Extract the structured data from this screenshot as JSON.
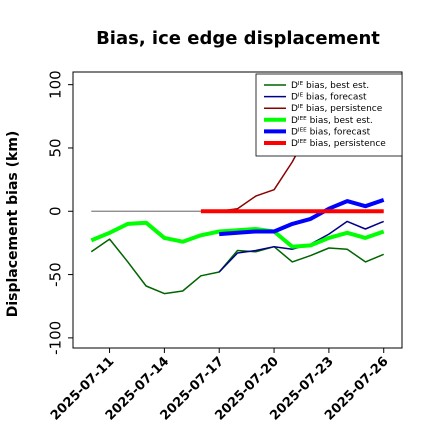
{
  "chart_data": {
    "type": "line",
    "title": "Bias, ice edge displacement",
    "xlabel": "",
    "ylabel": "Displacement bias (km)",
    "ylim": [
      -108,
      110
    ],
    "xlim": [
      "2025-07-09",
      "2025-07-27"
    ],
    "y_ticks": [
      100,
      50,
      0,
      -50,
      -100
    ],
    "y_tick_labels": [
      "100",
      "50",
      "0",
      "-50",
      "-100"
    ],
    "x_ticks": [
      "2025-07-11",
      "2025-07-14",
      "2025-07-17",
      "2025-07-20",
      "2025-07-23",
      "2025-07-26"
    ],
    "x_tick_labels": [
      "2025-07-11",
      "2025-07-14",
      "2025-07-17",
      "2025-07-20",
      "2025-07-23",
      "2025-07-26"
    ],
    "x_tick_colors": [
      "#000000",
      "#000000",
      "#228b22",
      "#000000",
      "#000000",
      "#000000"
    ],
    "grid": false,
    "legend_position": "top-right",
    "zero_line": {
      "from": "2025-07-10",
      "to": "2025-07-26",
      "y": 0,
      "color": "#808080"
    },
    "series": [
      {
        "name": "Dᴵᴱ bias, best est.",
        "color": "#006400",
        "width": 1.5,
        "points": [
          [
            "2025-07-10",
            -32
          ],
          [
            "2025-07-11",
            -22
          ],
          [
            "2025-07-12",
            -40
          ],
          [
            "2025-07-13",
            -59
          ],
          [
            "2025-07-14",
            -65
          ],
          [
            "2025-07-15",
            -63
          ],
          [
            "2025-07-16",
            -51
          ],
          [
            "2025-07-17",
            -48
          ],
          [
            "2025-07-18",
            -31
          ],
          [
            "2025-07-19",
            -32
          ],
          [
            "2025-07-20",
            -28
          ],
          [
            "2025-07-21",
            -40
          ],
          [
            "2025-07-22",
            -35
          ],
          [
            "2025-07-23",
            -29
          ],
          [
            "2025-07-24",
            -30
          ],
          [
            "2025-07-25",
            -40
          ],
          [
            "2025-07-26",
            -34
          ]
        ]
      },
      {
        "name": "Dᴵᴱ bias, forecast",
        "color": "#00008b",
        "width": 1.5,
        "points": [
          [
            "2025-07-17",
            -48
          ],
          [
            "2025-07-18",
            -33
          ],
          [
            "2025-07-19",
            -31
          ],
          [
            "2025-07-20",
            -28
          ],
          [
            "2025-07-21",
            -30
          ],
          [
            "2025-07-22",
            -26
          ],
          [
            "2025-07-23",
            -18
          ],
          [
            "2025-07-24",
            -8
          ],
          [
            "2025-07-25",
            -14
          ],
          [
            "2025-07-26",
            -8
          ]
        ]
      },
      {
        "name": "Dᴵᴱ bias, persistence",
        "color": "#8b0000",
        "width": 1.5,
        "points": [
          [
            "2025-07-17",
            0
          ],
          [
            "2025-07-18",
            2
          ],
          [
            "2025-07-19",
            12
          ],
          [
            "2025-07-20",
            17
          ],
          [
            "2025-07-21",
            39
          ],
          [
            "2025-07-22",
            66
          ]
        ]
      },
      {
        "name": "Dᴵᴱᴱ bias, best est.",
        "color": "#00ff00",
        "width": 4,
        "points": [
          [
            "2025-07-10",
            -23
          ],
          [
            "2025-07-11",
            -17
          ],
          [
            "2025-07-12",
            -10
          ],
          [
            "2025-07-13",
            -9
          ],
          [
            "2025-07-14",
            -21
          ],
          [
            "2025-07-15",
            -24
          ],
          [
            "2025-07-16",
            -19
          ],
          [
            "2025-07-17",
            -16
          ],
          [
            "2025-07-18",
            -15
          ],
          [
            "2025-07-19",
            -14
          ],
          [
            "2025-07-20",
            -16
          ],
          [
            "2025-07-21",
            -28
          ],
          [
            "2025-07-22",
            -27
          ],
          [
            "2025-07-23",
            -21
          ],
          [
            "2025-07-24",
            -17
          ],
          [
            "2025-07-25",
            -21
          ],
          [
            "2025-07-26",
            -16
          ]
        ]
      },
      {
        "name": "Dᴵᴱᴱ bias, forecast",
        "color": "#0000ff",
        "width": 4,
        "points": [
          [
            "2025-07-17",
            -18
          ],
          [
            "2025-07-18",
            -17
          ],
          [
            "2025-07-19",
            -16
          ],
          [
            "2025-07-20",
            -16
          ],
          [
            "2025-07-21",
            -10
          ],
          [
            "2025-07-22",
            -6
          ],
          [
            "2025-07-23",
            2
          ],
          [
            "2025-07-24",
            8
          ],
          [
            "2025-07-25",
            4
          ],
          [
            "2025-07-26",
            9
          ]
        ]
      },
      {
        "name": "Dᴵᴱᴱ bias, persistence",
        "color": "#ff0000",
        "width": 4,
        "points": [
          [
            "2025-07-16",
            0
          ],
          [
            "2025-07-17",
            0
          ],
          [
            "2025-07-18",
            0
          ],
          [
            "2025-07-19",
            0
          ],
          [
            "2025-07-20",
            0
          ],
          [
            "2025-07-21",
            0
          ],
          [
            "2025-07-22",
            0
          ],
          [
            "2025-07-23",
            0
          ],
          [
            "2025-07-24",
            0
          ],
          [
            "2025-07-25",
            0
          ],
          [
            "2025-07-26",
            0
          ]
        ]
      }
    ]
  }
}
